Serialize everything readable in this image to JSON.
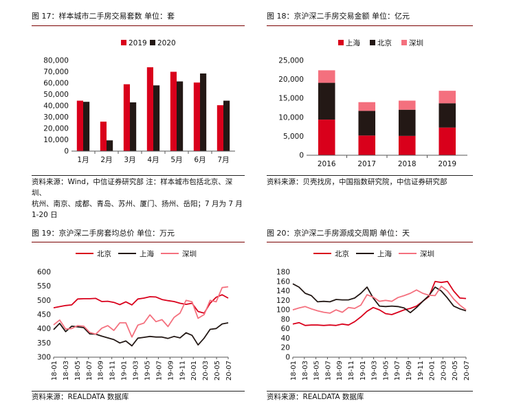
{
  "colors": {
    "red": "#d9001b",
    "black": "#231815",
    "pink": "#f4707e",
    "title_rule": "#7a0000"
  },
  "panels": [
    {
      "title": "图 17：样本城市二手房交易套数  单位：套",
      "source_lines": [
        "资料来源：Wind，中信证券研究部  注：样本城市包括北京、深圳、",
        "杭州、南京、成都、青岛、苏州、厦门、扬州、岳阳；7 月为 7 月",
        "1-20 日"
      ]
    },
    {
      "title": "图 18：京沪深二手房交易金额  单位：亿元",
      "source_lines": [
        "资料来源：贝壳找房，中国指数研究院，中信证券研究部"
      ]
    },
    {
      "title": "图 19：京沪深二手房套均总价  单位：万元",
      "source_lines": [
        "资料来源：REALDATA 数据库"
      ]
    },
    {
      "title": "图 20：京沪深二手房源成交周期  单位：天",
      "source_lines": [
        "资料来源：REALDATA 数据库"
      ]
    }
  ],
  "chart_data": [
    {
      "type": "bar",
      "categories": [
        "1月",
        "2月",
        "3月",
        "4月",
        "5月",
        "6月",
        "7月"
      ],
      "series": [
        {
          "name": "2019",
          "color": "#d9001b",
          "values": [
            44500,
            26000,
            59000,
            74000,
            70000,
            60500,
            40500
          ]
        },
        {
          "name": "2020",
          "color": "#231815",
          "values": [
            43500,
            9500,
            43000,
            58000,
            61500,
            68500,
            44500
          ]
        }
      ],
      "yticks": [
        "0",
        "10,000",
        "20,000",
        "30,000",
        "40,000",
        "50,000",
        "60,000",
        "70,000",
        "80,000"
      ],
      "ylim": [
        0,
        80000
      ],
      "legend": "top-center",
      "grid": false
    },
    {
      "type": "bar",
      "stacked": true,
      "categories": [
        "2016",
        "2017",
        "2018",
        "2019"
      ],
      "series": [
        {
          "name": "上海",
          "color": "#d9001b",
          "values": [
            9400,
            5200,
            5100,
            7300
          ]
        },
        {
          "name": "北京",
          "color": "#231815",
          "values": [
            9700,
            6500,
            6900,
            6400
          ]
        },
        {
          "name": "深圳",
          "color": "#f4707e",
          "values": [
            3300,
            2300,
            2400,
            3300
          ]
        }
      ],
      "yticks": [
        "0",
        "5,000",
        "10,000",
        "15,000",
        "20,000",
        "25,000"
      ],
      "ylim": [
        0,
        25000
      ],
      "legend": "top-left",
      "grid": false
    },
    {
      "type": "line",
      "x_labels": [
        "18-01",
        "18-03",
        "18-05",
        "18-07",
        "18-09",
        "18-11",
        "19-01",
        "19-03",
        "19-05",
        "19-07",
        "19-09",
        "19-11",
        "20-01",
        "20-03",
        "20-05",
        "20-07"
      ],
      "series": [
        {
          "name": "北京",
          "color": "#d9001b",
          "values": [
            474,
            478,
            482,
            484,
            505,
            506,
            506,
            507,
            496,
            497,
            493,
            485,
            495,
            484,
            505,
            508,
            513,
            512,
            503,
            499,
            496,
            490,
            486,
            490,
            461,
            455,
            490,
            511,
            520,
            508
          ]
        },
        {
          "name": "上海",
          "color": "#231815",
          "values": [
            397,
            419,
            390,
            409,
            407,
            404,
            382,
            381,
            374,
            368,
            362,
            350,
            357,
            340,
            367,
            370,
            373,
            371,
            371,
            366,
            373,
            368,
            386,
            377,
            343,
            367,
            398,
            401,
            417,
            421
          ]
        },
        {
          "name": "深圳",
          "color": "#f4707e",
          "values": [
            414,
            431,
            399,
            401,
            411,
            409,
            387,
            381,
            402,
            411,
            394,
            421,
            421,
            371,
            413,
            420,
            449,
            425,
            432,
            408,
            440,
            455,
            500,
            495,
            437,
            450,
            500,
            495,
            545,
            548
          ]
        }
      ],
      "yticks": [
        "300",
        "350",
        "400",
        "450",
        "500",
        "550",
        "600"
      ],
      "ylim": [
        300,
        600
      ],
      "legend": "top-center",
      "grid": false
    },
    {
      "type": "line",
      "x_labels": [
        "18-01",
        "18-03",
        "18-05",
        "18-07",
        "18-09",
        "18-11",
        "19-01",
        "19-03",
        "19-05",
        "19-07",
        "19-09",
        "19-11",
        "20-01",
        "20-03",
        "20-05",
        "20-07"
      ],
      "series": [
        {
          "name": "北京",
          "color": "#d9001b",
          "values": [
            70,
            73,
            67,
            68,
            68,
            67,
            68,
            67,
            70,
            68,
            75,
            85,
            97,
            105,
            100,
            92,
            90,
            95,
            100,
            103,
            108,
            118,
            128,
            160,
            158,
            160,
            140,
            125,
            124
          ]
        },
        {
          "name": "上海",
          "color": "#231815",
          "values": [
            155,
            148,
            135,
            130,
            117,
            118,
            117,
            122,
            121,
            121,
            125,
            135,
            148,
            125,
            108,
            107,
            108,
            107,
            104,
            94,
            105,
            118,
            130,
            148,
            140,
            125,
            108,
            102,
            98
          ]
        },
        {
          "name": "深圳",
          "color": "#f4707e",
          "values": [
            100,
            104,
            107,
            102,
            98,
            95,
            93,
            100,
            95,
            105,
            103,
            110,
            132,
            127,
            118,
            120,
            118,
            126,
            130,
            135,
            142,
            135,
            131,
            130,
            150,
            140,
            123,
            110,
            100
          ]
        }
      ],
      "yticks": [
        "0",
        "20",
        "40",
        "60",
        "80",
        "100",
        "120",
        "140",
        "160",
        "180"
      ],
      "ylim": [
        0,
        180
      ],
      "legend": "top-center",
      "grid": false
    }
  ]
}
